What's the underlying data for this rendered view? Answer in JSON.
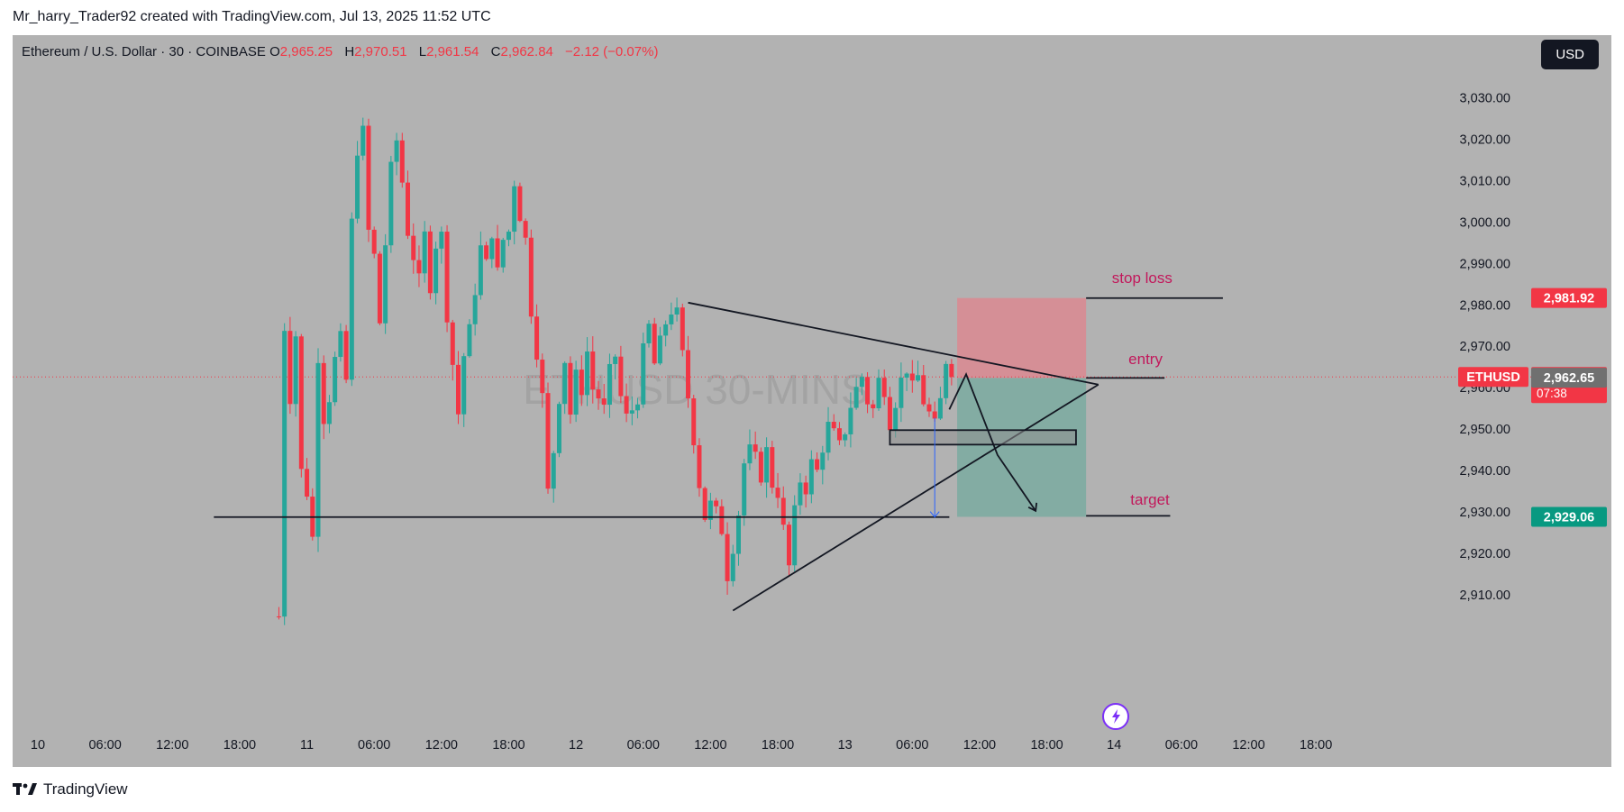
{
  "header": {
    "credit": "Mr_harry_Trader92 created with TradingView.com, Jul 13, 2025 11:52 UTC"
  },
  "legend": {
    "symbol": "Ethereum / U.S. Dollar · 30 · COINBASE",
    "o_label": "O",
    "o_value": "2,965.25",
    "h_label": "H",
    "h_value": "2,970.51",
    "l_label": "L",
    "l_value": "2,961.54",
    "c_label": "C",
    "c_value": "2,962.84",
    "change": "−2.12 (−0.07%)"
  },
  "currency": "USD",
  "watermark": "ETHUSD 30-MINS",
  "colors": {
    "up": "#26a69a",
    "down": "#f23645",
    "background": "#b2b2b2",
    "stop_zone": "#d58f96",
    "target_zone": "#83aca3"
  },
  "chart_data": {
    "type": "candlestick",
    "symbol": "ETHUSD",
    "interval": "30",
    "ylim": [
      2900,
      3040
    ],
    "y_ticks": [
      {
        "value": 2910,
        "label": "2,910.00"
      },
      {
        "value": 2920,
        "label": "2,920.00"
      },
      {
        "value": 2930,
        "label": "2,930.00"
      },
      {
        "value": 2940,
        "label": "2,940.00"
      },
      {
        "value": 2950,
        "label": "2,950.00"
      },
      {
        "value": 2960,
        "label": "2,960.00"
      },
      {
        "value": 2970,
        "label": "2,970.00"
      },
      {
        "value": 2980,
        "label": "2,980.00"
      },
      {
        "value": 2990,
        "label": "2,990.00"
      },
      {
        "value": 3000,
        "label": "3,000.00"
      },
      {
        "value": 3010,
        "label": "3,010.00"
      },
      {
        "value": 3020,
        "label": "3,020.00"
      },
      {
        "value": 3030,
        "label": "3,030.00"
      }
    ],
    "x_ticks": [
      {
        "t": 0,
        "label": "10"
      },
      {
        "t": 6,
        "label": "06:00"
      },
      {
        "t": 12,
        "label": "12:00"
      },
      {
        "t": 18,
        "label": "18:00"
      },
      {
        "t": 24,
        "label": "11"
      },
      {
        "t": 30,
        "label": "06:00"
      },
      {
        "t": 36,
        "label": "12:00"
      },
      {
        "t": 42,
        "label": "18:00"
      },
      {
        "t": 48,
        "label": "12"
      },
      {
        "t": 54,
        "label": "06:00"
      },
      {
        "t": 60,
        "label": "12:00"
      },
      {
        "t": 66,
        "label": "18:00"
      },
      {
        "t": 72,
        "label": "13"
      },
      {
        "t": 78,
        "label": "06:00"
      },
      {
        "t": 84,
        "label": "12:00"
      },
      {
        "t": 90,
        "label": "18:00"
      },
      {
        "t": 96,
        "label": "14"
      },
      {
        "t": 102,
        "label": "06:00"
      },
      {
        "t": 108,
        "label": "12:00"
      },
      {
        "t": 114,
        "label": "18:00"
      }
    ],
    "price_anchors": [
      [
        21.5,
        2905
      ],
      [
        22.0,
        2975
      ],
      [
        22.5,
        2958
      ],
      [
        23.0,
        2973
      ],
      [
        23.5,
        2940
      ],
      [
        24.0,
        2935
      ],
      [
        24.5,
        2924
      ],
      [
        25.0,
        2968
      ],
      [
        25.5,
        2953
      ],
      [
        26.0,
        2958
      ],
      [
        26.5,
        2967
      ],
      [
        27.0,
        2972
      ],
      [
        27.5,
        2962
      ],
      [
        28.0,
        3000
      ],
      [
        28.5,
        3018
      ],
      [
        29.0,
        3022
      ],
      [
        29.5,
        2998
      ],
      [
        30.0,
        2992
      ],
      [
        30.5,
        2976
      ],
      [
        31.0,
        2995
      ],
      [
        31.5,
        3013
      ],
      [
        32.0,
        3020
      ],
      [
        32.5,
        3010
      ],
      [
        33.0,
        2998
      ],
      [
        33.5,
        2992
      ],
      [
        34.0,
        2986
      ],
      [
        34.5,
        2997
      ],
      [
        35.0,
        2985
      ],
      [
        35.5,
        2995
      ],
      [
        36.0,
        2997
      ],
      [
        36.5,
        2978
      ],
      [
        37.0,
        2966
      ],
      [
        37.5,
        2954
      ],
      [
        38.0,
        2968
      ],
      [
        38.5,
        2974
      ],
      [
        39.0,
        2984
      ],
      [
        39.5,
        2994
      ],
      [
        40.0,
        2990
      ],
      [
        40.5,
        2998
      ],
      [
        41.0,
        2988
      ],
      [
        41.5,
        2996
      ],
      [
        42.0,
        2998
      ],
      [
        42.5,
        3010
      ],
      [
        43.0,
        3002
      ],
      [
        43.5,
        2996
      ],
      [
        44.0,
        2979
      ],
      [
        44.5,
        2969
      ],
      [
        45.0,
        2958
      ],
      [
        45.5,
        2935
      ],
      [
        46.0,
        2945
      ],
      [
        46.5,
        2958
      ],
      [
        47.0,
        2967
      ],
      [
        47.5,
        2954
      ],
      [
        48.0,
        2963
      ],
      [
        48.5,
        2960
      ],
      [
        49.0,
        2969
      ],
      [
        49.5,
        2960
      ],
      [
        50.0,
        2958
      ],
      [
        50.5,
        2955
      ],
      [
        51.0,
        2964
      ],
      [
        51.5,
        2968
      ],
      [
        52.0,
        2958
      ],
      [
        52.5,
        2953
      ],
      [
        53.0,
        2955
      ],
      [
        53.5,
        2958
      ],
      [
        54.0,
        2969
      ],
      [
        54.5,
        2975
      ],
      [
        55.0,
        2966
      ],
      [
        55.5,
        2971
      ],
      [
        56.0,
        2976
      ],
      [
        56.5,
        2979
      ],
      [
        57.0,
        2978
      ],
      [
        57.5,
        2968
      ],
      [
        58.0,
        2958
      ],
      [
        58.5,
        2948
      ],
      [
        59.0,
        2937
      ],
      [
        59.5,
        2929
      ],
      [
        60.0,
        2932
      ],
      [
        60.5,
        2930
      ],
      [
        61.0,
        2926
      ],
      [
        61.5,
        2915
      ],
      [
        62.0,
        2922
      ],
      [
        62.5,
        2930
      ],
      [
        63.0,
        2942
      ],
      [
        63.5,
        2945
      ],
      [
        64.0,
        2943
      ],
      [
        64.5,
        2939
      ],
      [
        65.0,
        2945
      ],
      [
        65.5,
        2937
      ],
      [
        66.0,
        2935
      ],
      [
        66.5,
        2926
      ],
      [
        67.0,
        2917
      ],
      [
        67.5,
        2930
      ],
      [
        68.0,
        2938
      ],
      [
        68.5,
        2936
      ],
      [
        69.0,
        2942
      ],
      [
        69.5,
        2940
      ],
      [
        70.0,
        2946
      ],
      [
        70.5,
        2951
      ],
      [
        71.0,
        2949
      ],
      [
        71.5,
        2946
      ],
      [
        72.0,
        2950
      ],
      [
        72.5,
        2956
      ],
      [
        73.0,
        2960
      ],
      [
        73.5,
        2963
      ],
      [
        74.0,
        2957
      ],
      [
        74.5,
        2955
      ],
      [
        75.0,
        2962
      ],
      [
        75.5,
        2960
      ],
      [
        76.0,
        2952
      ],
      [
        76.5,
        2957
      ],
      [
        77.0,
        2962
      ],
      [
        77.5,
        2965
      ],
      [
        78.0,
        2960
      ],
      [
        78.5,
        2963
      ],
      [
        79.0,
        2957
      ],
      [
        79.5,
        2954
      ],
      [
        80.0,
        2951
      ],
      [
        80.5,
        2957
      ],
      [
        81.0,
        2967
      ],
      [
        81.5,
        2963
      ]
    ],
    "lines": [
      {
        "name": "support",
        "t1": 15.7,
        "p1": 2929.0,
        "t2": 81.3,
        "p2": 2929.0
      },
      {
        "name": "upper-trendline",
        "t1": 58.0,
        "p1": 2980.8,
        "t2": 94.6,
        "p2": 2961.0
      },
      {
        "name": "lower-trendline",
        "t1": 62.0,
        "p1": 2906.4,
        "t2": 94.6,
        "p2": 2961.0
      },
      {
        "name": "stop-line",
        "t1": 93.5,
        "p1": 2981.9,
        "t2": 105.7,
        "p2": 2981.9
      },
      {
        "name": "entry-line",
        "t1": 93.5,
        "p1": 2962.6,
        "t2": 100.5,
        "p2": 2962.6
      },
      {
        "name": "target-line",
        "t1": 93.5,
        "p1": 2929.3,
        "t2": 101.0,
        "p2": 2929.3
      }
    ],
    "path_projection": [
      [
        81.3,
        2955.0
      ],
      [
        82.8,
        2963.5
      ],
      [
        85.6,
        2944.0
      ],
      [
        89.0,
        2930.5
      ]
    ],
    "projection_arrow_head": {
      "t": 89.0,
      "p": 2930.5
    },
    "measure_arrow": {
      "t": 80.0,
      "p_from": 2953.0,
      "p_to": 2929.0
    },
    "position": {
      "t1": 82.0,
      "t2": 93.5,
      "entry": 2962.6,
      "stop": 2981.92,
      "target": 2929.06
    },
    "zone_box": {
      "t1": 76.0,
      "t2": 92.6,
      "p_top": 2950.0,
      "p_bottom": 2946.5
    },
    "annotations": [
      {
        "name": "stop-loss-label",
        "text": "stop loss",
        "t": 98.5,
        "p": 2985.5
      },
      {
        "name": "entry-label",
        "text": "entry",
        "t": 98.8,
        "p": 2966.0
      },
      {
        "name": "target-label",
        "text": "target",
        "t": 99.2,
        "p": 2932.0
      }
    ],
    "price_labels": [
      {
        "name": "stop-price-tag",
        "text": "2,981.92",
        "value": 2981.92,
        "color": "#f23645"
      },
      {
        "name": "current-price-tag",
        "text": "2,962.84",
        "value": 2962.84,
        "color": "#f23645",
        "countdown": "07:38"
      },
      {
        "name": "entry-price-tag",
        "text": "2,962.65",
        "value": 2962.65,
        "color": "#707070"
      },
      {
        "name": "target-price-tag",
        "text": "2,929.06",
        "value": 2929.06,
        "color": "#089981"
      }
    ],
    "symbol_tag": "ETHUSD",
    "current_price": 2962.84
  },
  "footer": {
    "brand": "TradingView"
  }
}
